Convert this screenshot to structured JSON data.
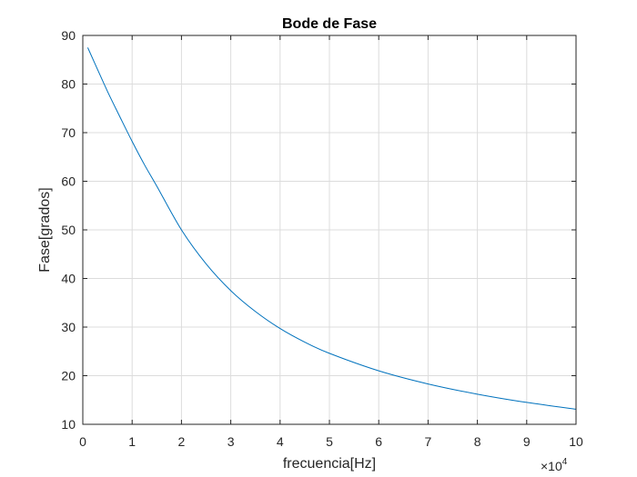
{
  "chart_data": {
    "type": "line",
    "title": "Bode de Fase",
    "xlabel": "frecuencia[Hz]",
    "ylabel": "Fase[grados]",
    "x_exponent_label": {
      "base": "×10",
      "exponent": "4"
    },
    "xlim": [
      0,
      10
    ],
    "ylim": [
      10,
      90
    ],
    "xticks": [
      "0",
      "1",
      "2",
      "3",
      "4",
      "5",
      "6",
      "7",
      "8",
      "9",
      "10"
    ],
    "yticks": [
      "10",
      "20",
      "30",
      "40",
      "50",
      "60",
      "70",
      "80",
      "90"
    ],
    "grid": true,
    "series": [
      {
        "color": "#0072BD",
        "x": [
          0.1,
          0.25,
          0.5,
          0.75,
          1,
          1.25,
          1.5,
          2,
          2.5,
          3,
          3.5,
          4,
          4.5,
          5,
          6,
          7,
          8,
          9,
          10
        ],
        "y": [
          87.5,
          84.1,
          78.5,
          73.3,
          68.2,
          63.4,
          59.0,
          50.0,
          43.0,
          37.5,
          33.2,
          29.7,
          26.9,
          24.6,
          21.0,
          18.3,
          16.2,
          14.5,
          13.1
        ]
      }
    ]
  }
}
